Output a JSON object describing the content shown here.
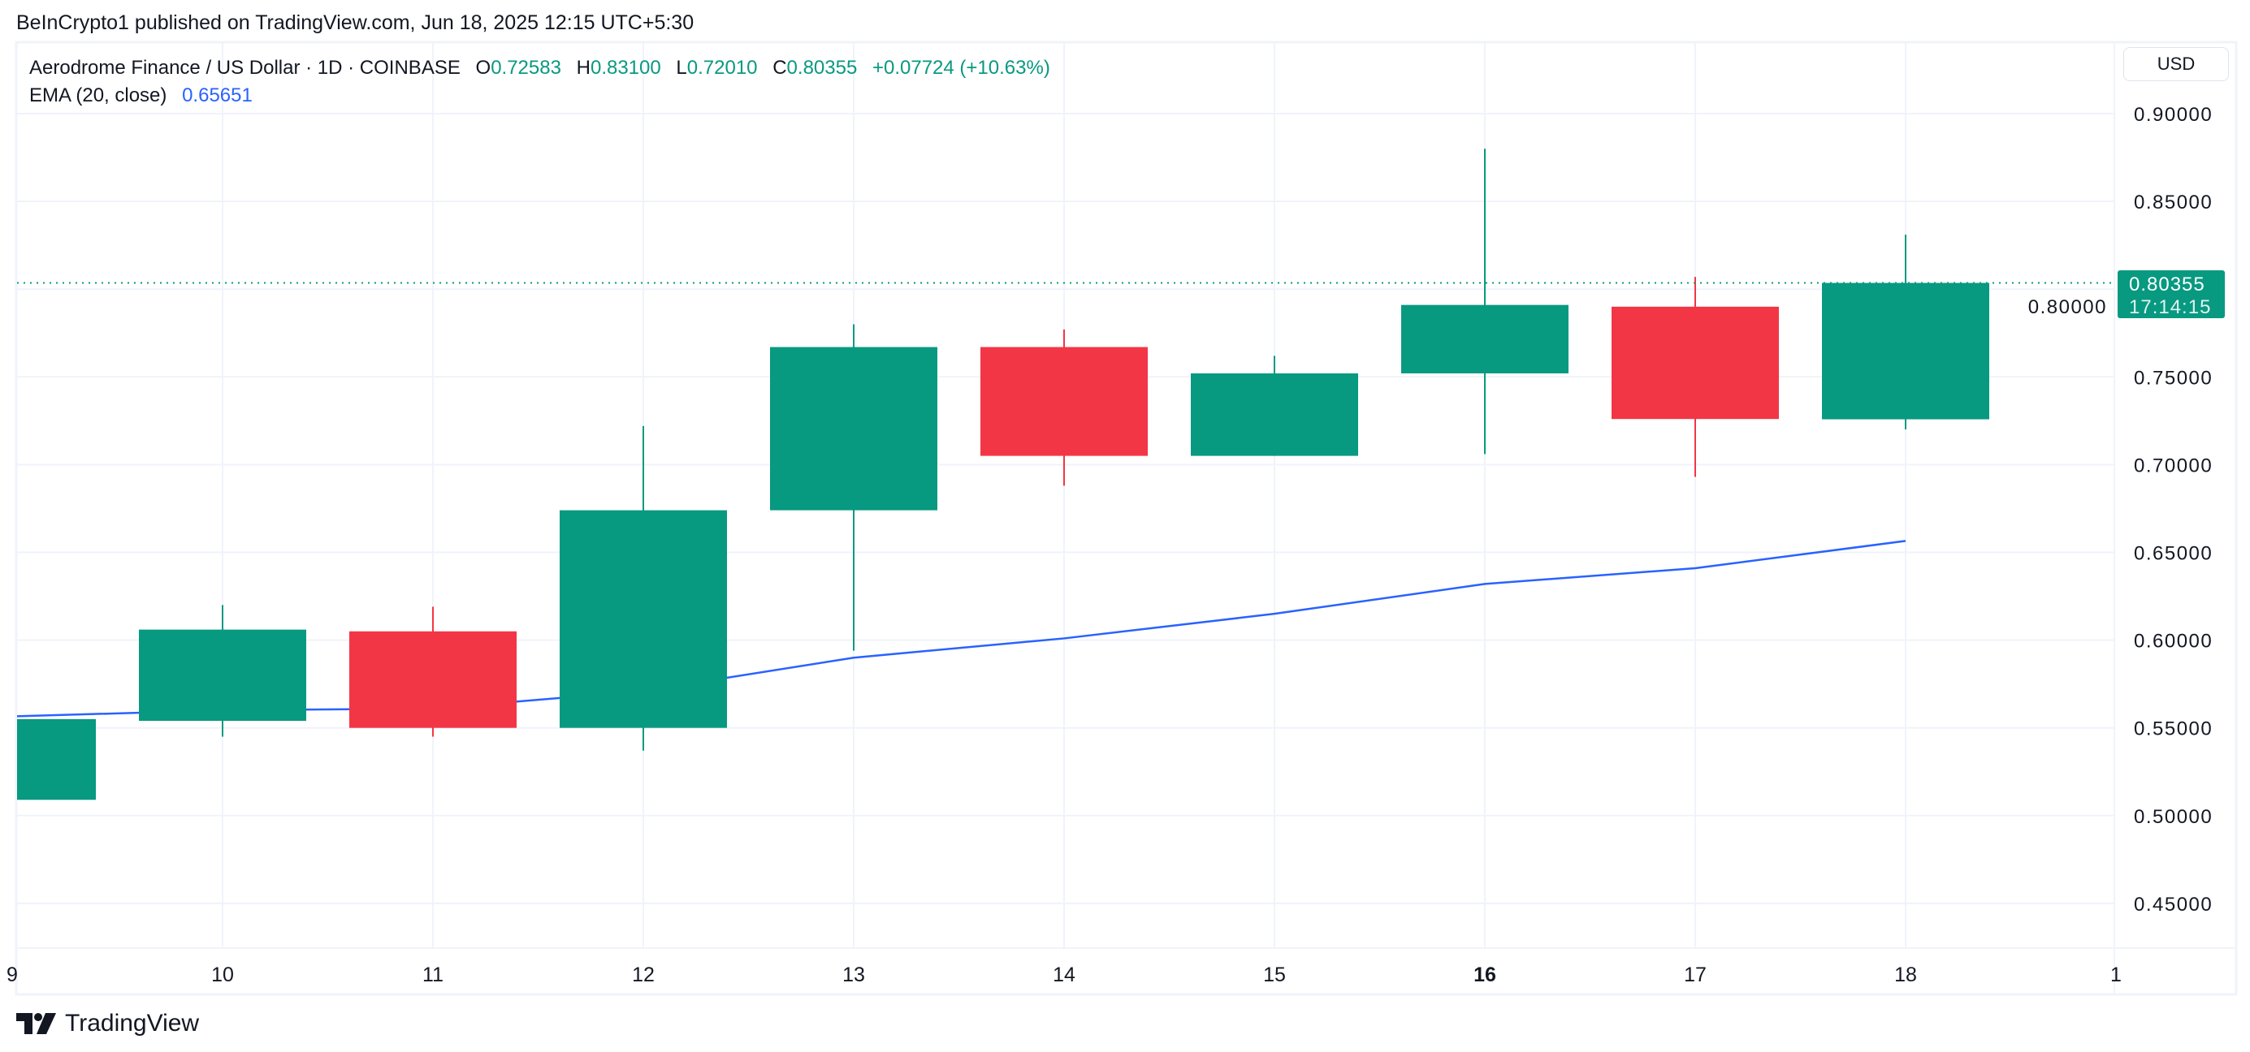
{
  "header": {
    "published": "BeInCrypto1 published on TradingView.com, Jun 18, 2025 12:15 UTC+5:30"
  },
  "legend": {
    "symbol": "Aerodrome Finance / US Dollar · 1D · COINBASE",
    "o_label": "O",
    "o": "0.72583",
    "h_label": "H",
    "h": "0.83100",
    "l_label": "L",
    "l": "0.72010",
    "c_label": "C",
    "c": "0.80355",
    "change": "+0.07724 (+10.63%)",
    "ema_label": "EMA (20, close)",
    "ema_value": "0.65651"
  },
  "price_axis": {
    "currency": "USD",
    "last_price": "0.80355",
    "countdown": "17:14:15"
  },
  "footer": {
    "brand": "TradingView"
  },
  "colors": {
    "up": "#089981",
    "down": "#f23645",
    "ema": "#2962ff",
    "grid": "#f0f3fa"
  },
  "chart_data": {
    "type": "candlestick",
    "x_tick_labels": [
      "9",
      "10",
      "11",
      "12",
      "13",
      "14",
      "15",
      "16",
      "17",
      "18",
      "1"
    ],
    "x": [
      9,
      10,
      11,
      12,
      13,
      14,
      15,
      16,
      17,
      18
    ],
    "candles": [
      {
        "day": 9,
        "open": 0.509,
        "high": 0.555,
        "low": 0.509,
        "close": 0.555
      },
      {
        "day": 10,
        "open": 0.554,
        "high": 0.62,
        "low": 0.545,
        "close": 0.606
      },
      {
        "day": 11,
        "open": 0.605,
        "high": 0.619,
        "low": 0.545,
        "close": 0.55
      },
      {
        "day": 12,
        "open": 0.55,
        "high": 0.722,
        "low": 0.537,
        "close": 0.674
      },
      {
        "day": 13,
        "open": 0.674,
        "high": 0.78,
        "low": 0.594,
        "close": 0.767
      },
      {
        "day": 14,
        "open": 0.767,
        "high": 0.777,
        "low": 0.688,
        "close": 0.705
      },
      {
        "day": 15,
        "open": 0.705,
        "high": 0.762,
        "low": 0.705,
        "close": 0.752
      },
      {
        "day": 16,
        "open": 0.752,
        "high": 0.88,
        "low": 0.706,
        "close": 0.791
      },
      {
        "day": 17,
        "open": 0.79,
        "high": 0.807,
        "low": 0.693,
        "close": 0.726
      },
      {
        "day": 18,
        "open": 0.72583,
        "high": 0.831,
        "low": 0.7201,
        "close": 0.80355
      }
    ],
    "ema": [
      0.557,
      0.56,
      0.561,
      0.571,
      0.59,
      0.601,
      0.615,
      0.632,
      0.641,
      0.65651
    ],
    "y_ticks": [
      "0.90000",
      "0.85000",
      "0.80000",
      "0.75000",
      "0.70000",
      "0.65000",
      "0.60000",
      "0.55000",
      "0.50000",
      "0.45000"
    ],
    "y_tick_values": [
      0.9,
      0.85,
      0.8,
      0.75,
      0.7,
      0.65,
      0.6,
      0.55,
      0.5,
      0.45
    ],
    "ylim": [
      0.41,
      0.925
    ],
    "grid": true,
    "last_price_line": 0.80355
  }
}
